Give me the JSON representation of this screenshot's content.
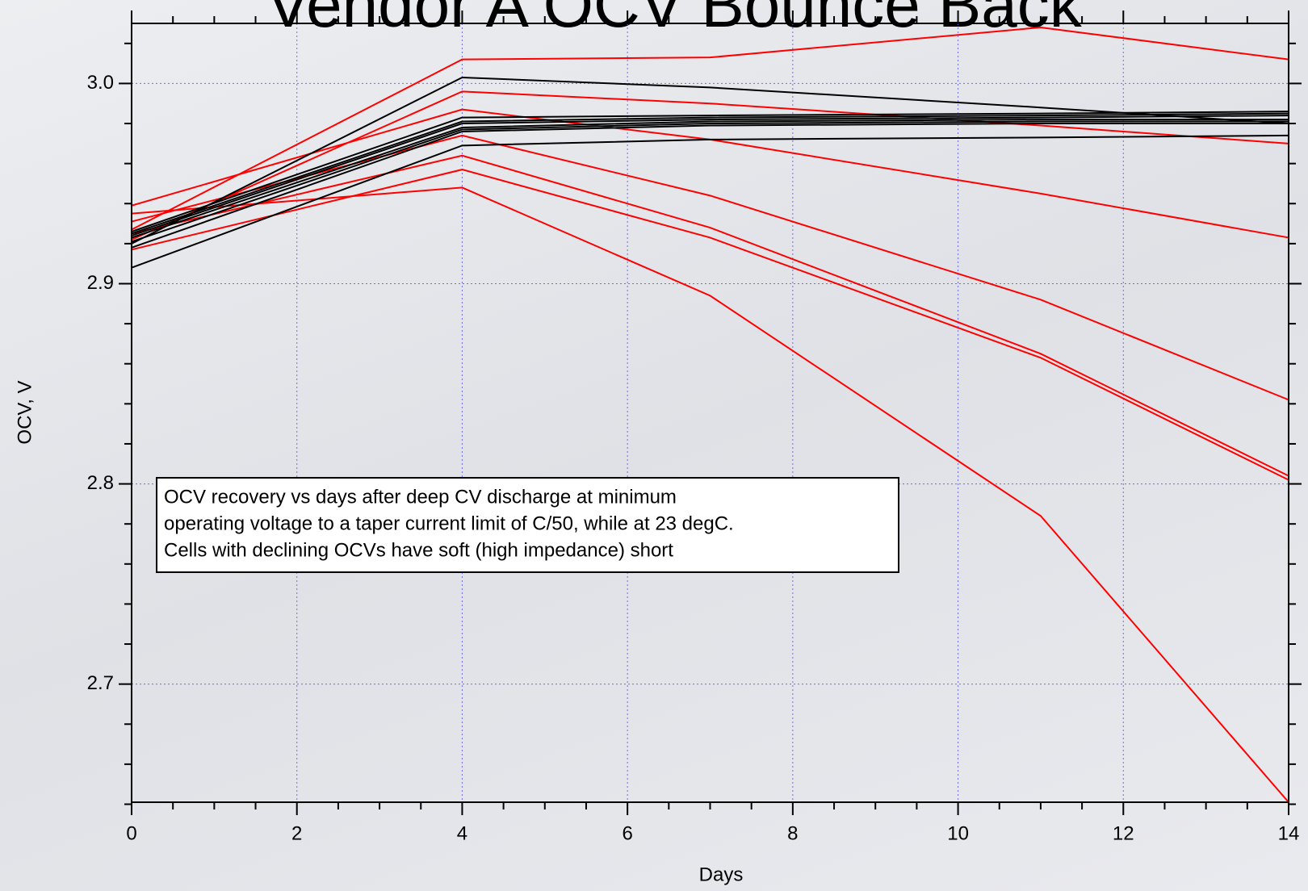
{
  "chart_data": {
    "type": "line",
    "title": "Vendor A OCV Bounce Back",
    "x_label": "Days",
    "y_label": "OCV, V",
    "annotation": [
      "OCV recovery vs days after deep CV discharge at minimum",
      "operating voltage to a taper current limit of C/50, while at 23 degC.",
      "Cells with declining OCVs have soft (high impedance) short"
    ],
    "x": [
      0,
      4,
      7,
      11,
      14
    ],
    "series": [
      {
        "color": "#ff0000",
        "values": [
          2.927,
          3.012,
          3.013,
          3.028,
          3.012
        ]
      },
      {
        "color": "#ff0000",
        "values": [
          2.922,
          2.996,
          2.99,
          2.979,
          2.97
        ]
      },
      {
        "color": "#ff0000",
        "values": [
          2.939,
          2.987,
          2.972,
          2.945,
          2.923
        ]
      },
      {
        "color": "#ff0000",
        "values": [
          2.931,
          2.974,
          2.944,
          2.892,
          2.842
        ]
      },
      {
        "color": "#ff0000",
        "values": [
          2.925,
          2.964,
          2.928,
          2.865,
          2.804
        ]
      },
      {
        "color": "#ff0000",
        "values": [
          2.917,
          2.957,
          2.923,
          2.863,
          2.802
        ]
      },
      {
        "color": "#ff0000",
        "values": [
          2.935,
          2.948,
          2.894,
          2.784,
          2.641
        ]
      },
      {
        "color": "#000000",
        "values": [
          2.92,
          3.003,
          2.998,
          2.988,
          2.98
        ]
      },
      {
        "color": "#000000",
        "values": [
          2.908,
          2.969,
          2.972,
          2.973,
          2.974
        ]
      },
      {
        "color": "#000000",
        "values": [
          2.918,
          2.976,
          2.979,
          2.98,
          2.98
        ]
      },
      {
        "color": "#000000",
        "values": [
          2.921,
          2.977,
          2.98,
          2.981,
          2.981
        ]
      },
      {
        "color": "#000000",
        "values": [
          2.923,
          2.978,
          2.981,
          2.982,
          2.982
        ]
      },
      {
        "color": "#000000",
        "values": [
          2.924,
          2.98,
          2.982,
          2.983,
          2.984
        ]
      },
      {
        "color": "#000000",
        "values": [
          2.925,
          2.981,
          2.983,
          2.984,
          2.985
        ]
      },
      {
        "color": "#000000",
        "values": [
          2.926,
          2.983,
          2.984,
          2.985,
          2.986
        ]
      }
    ],
    "xlim": [
      0,
      14
    ],
    "xticks": [
      0,
      2,
      4,
      6,
      8,
      10,
      12,
      14
    ],
    "xminorticks": [
      0.5,
      1,
      1.5,
      2.5,
      3,
      3.5,
      4.5,
      5,
      5.5,
      6.5,
      7,
      7.5,
      8.5,
      9,
      9.5,
      10.5,
      11,
      11.5,
      12.5,
      13,
      13.5
    ],
    "ylim": [
      2.641,
      3.03
    ],
    "yticks": [
      2.7,
      2.8,
      2.9,
      {
        "value": 3.0,
        "label": "3.0"
      }
    ],
    "yminorticks": [
      2.64,
      2.66,
      2.68,
      2.72,
      2.74,
      2.76,
      2.78,
      2.82,
      2.84,
      2.86,
      2.88,
      2.92,
      2.94,
      2.96,
      2.98,
      3.02
    ],
    "grid": true,
    "grid_color": "#6a6aff"
  }
}
